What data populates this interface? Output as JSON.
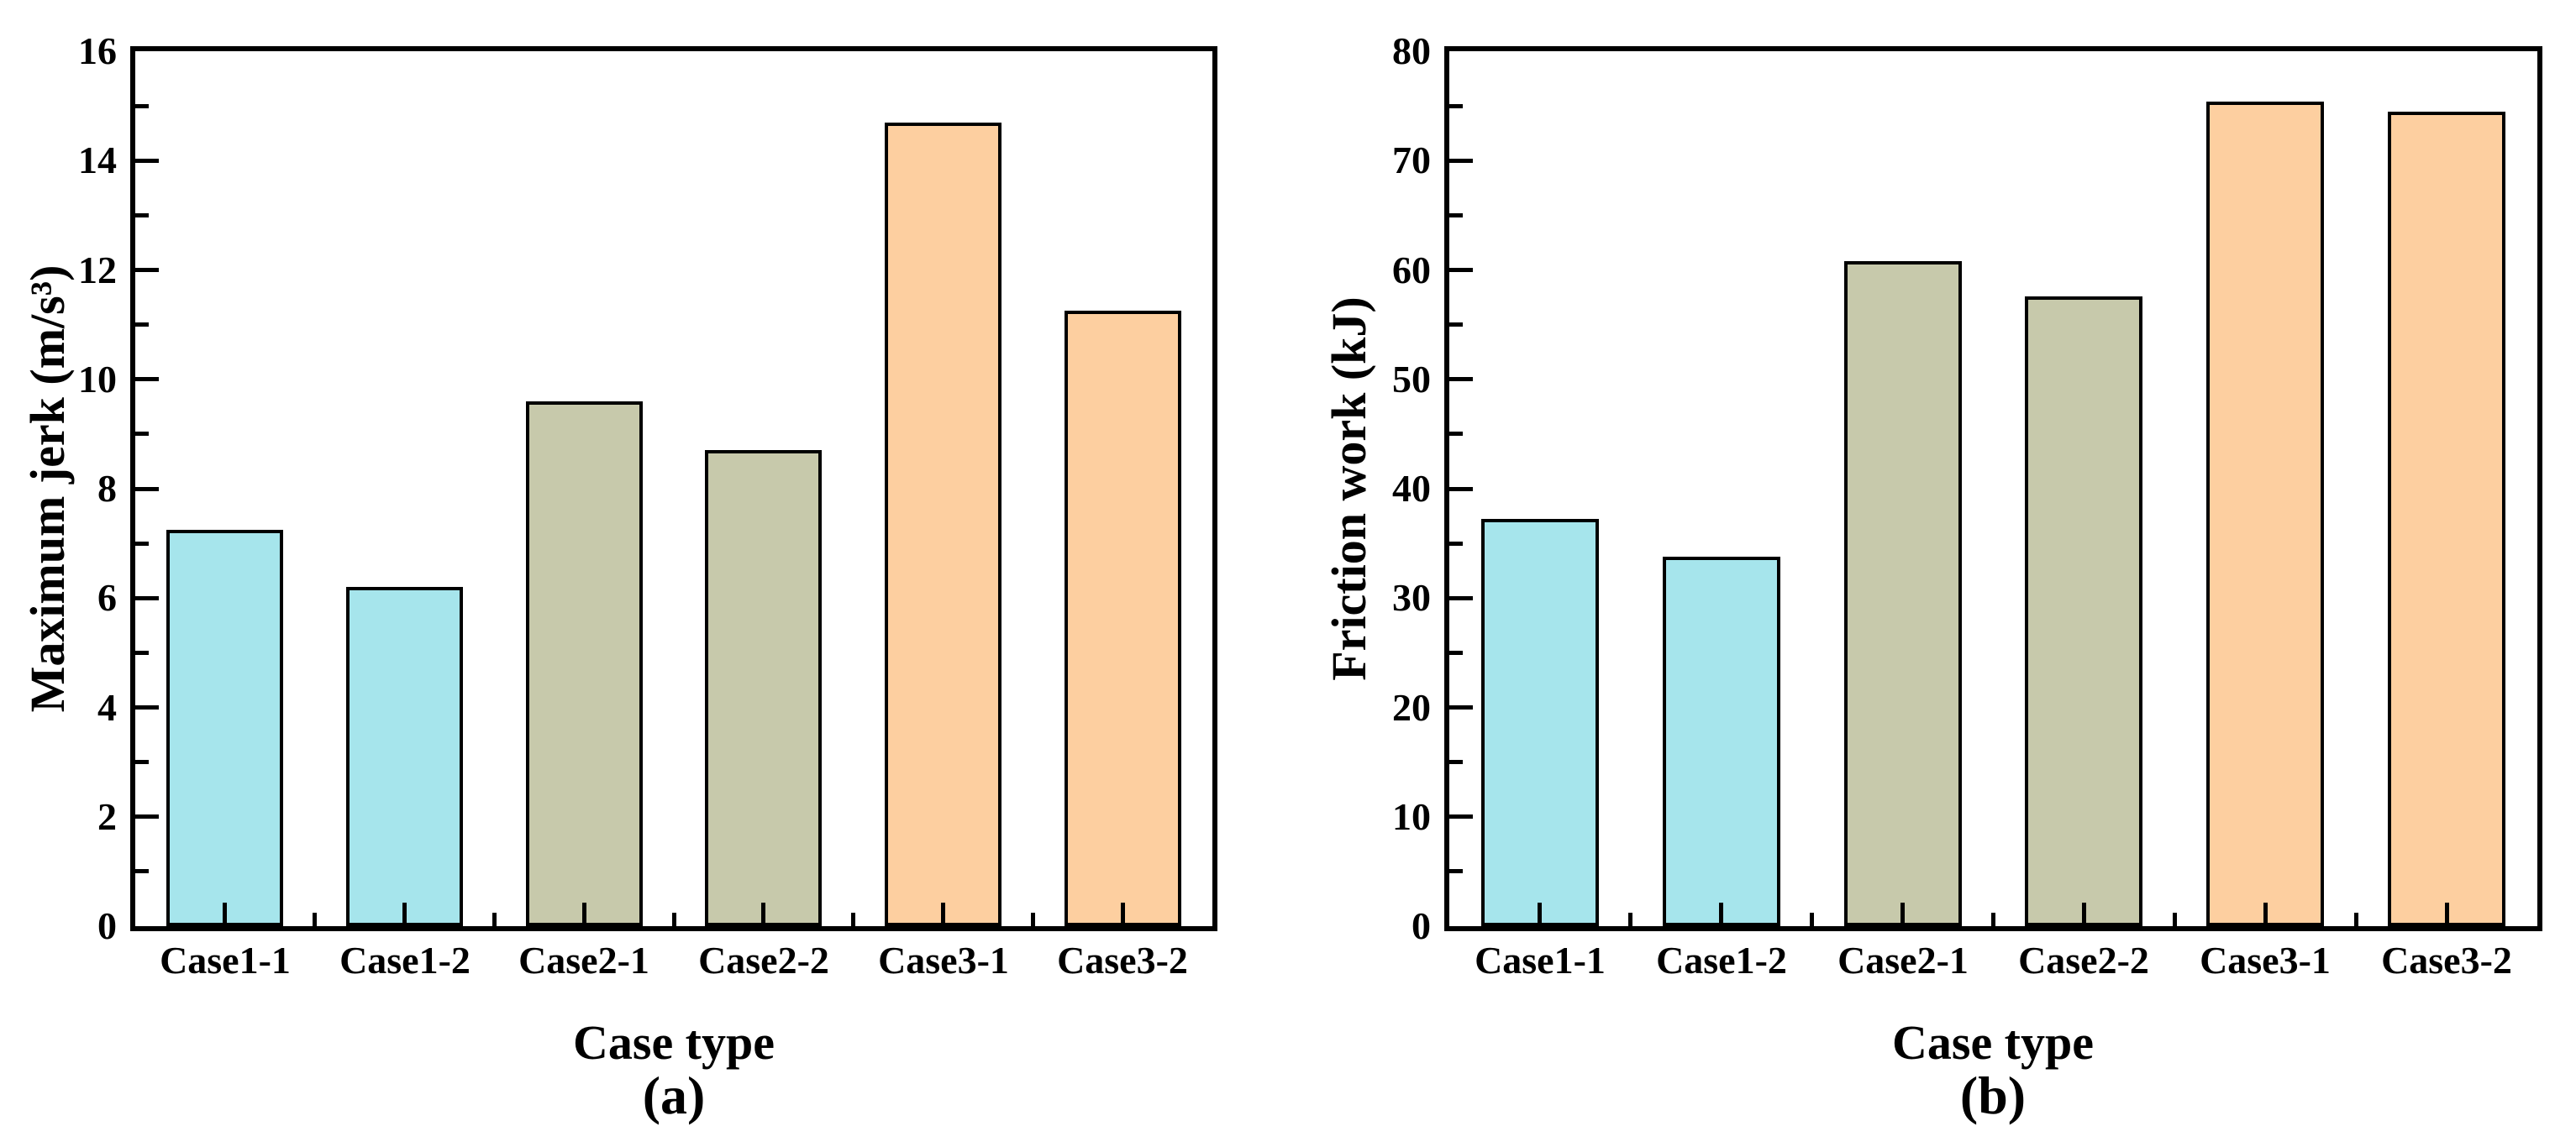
{
  "figure": {
    "background": "#ffffff",
    "axis_color": "#000000",
    "bar_edge_color": "#000000"
  },
  "chart_data": [
    {
      "type": "bar",
      "panel_label": "(a)",
      "xlabel": "Case type",
      "ylabel": "Maximum jerk (m/s³)",
      "categories": [
        "Case1-1",
        "Case1-2",
        "Case2-1",
        "Case2-2",
        "Case3-1",
        "Case3-2"
      ],
      "values": [
        7.25,
        6.2,
        9.6,
        8.7,
        14.7,
        11.25
      ],
      "bar_colors": [
        "#a6e5ec",
        "#a6e5ec",
        "#c7c9ab",
        "#c7c9ab",
        "#fdcfa0",
        "#fdcfa0"
      ],
      "ylim": [
        0,
        16
      ],
      "ytick_step": 2,
      "yminor_step": 1,
      "ytick_labels": [
        "0",
        "2",
        "4",
        "6",
        "8",
        "10",
        "12",
        "14",
        "16"
      ],
      "grid": false,
      "legend": null
    },
    {
      "type": "bar",
      "panel_label": "(b)",
      "xlabel": "Case type",
      "ylabel": "Friction work (kJ)",
      "categories": [
        "Case1-1",
        "Case1-2",
        "Case2-1",
        "Case2-2",
        "Case3-1",
        "Case3-2"
      ],
      "values": [
        37.2,
        33.8,
        60.8,
        57.6,
        75.4,
        74.5
      ],
      "bar_colors": [
        "#a6e5ec",
        "#a6e5ec",
        "#c7c9ab",
        "#c7c9ab",
        "#fdcfa0",
        "#fdcfa0"
      ],
      "ylim": [
        0,
        80
      ],
      "ytick_step": 10,
      "yminor_step": 5,
      "ytick_labels": [
        "0",
        "10",
        "20",
        "30",
        "40",
        "50",
        "60",
        "70",
        "80"
      ],
      "grid": false,
      "legend": null
    }
  ]
}
